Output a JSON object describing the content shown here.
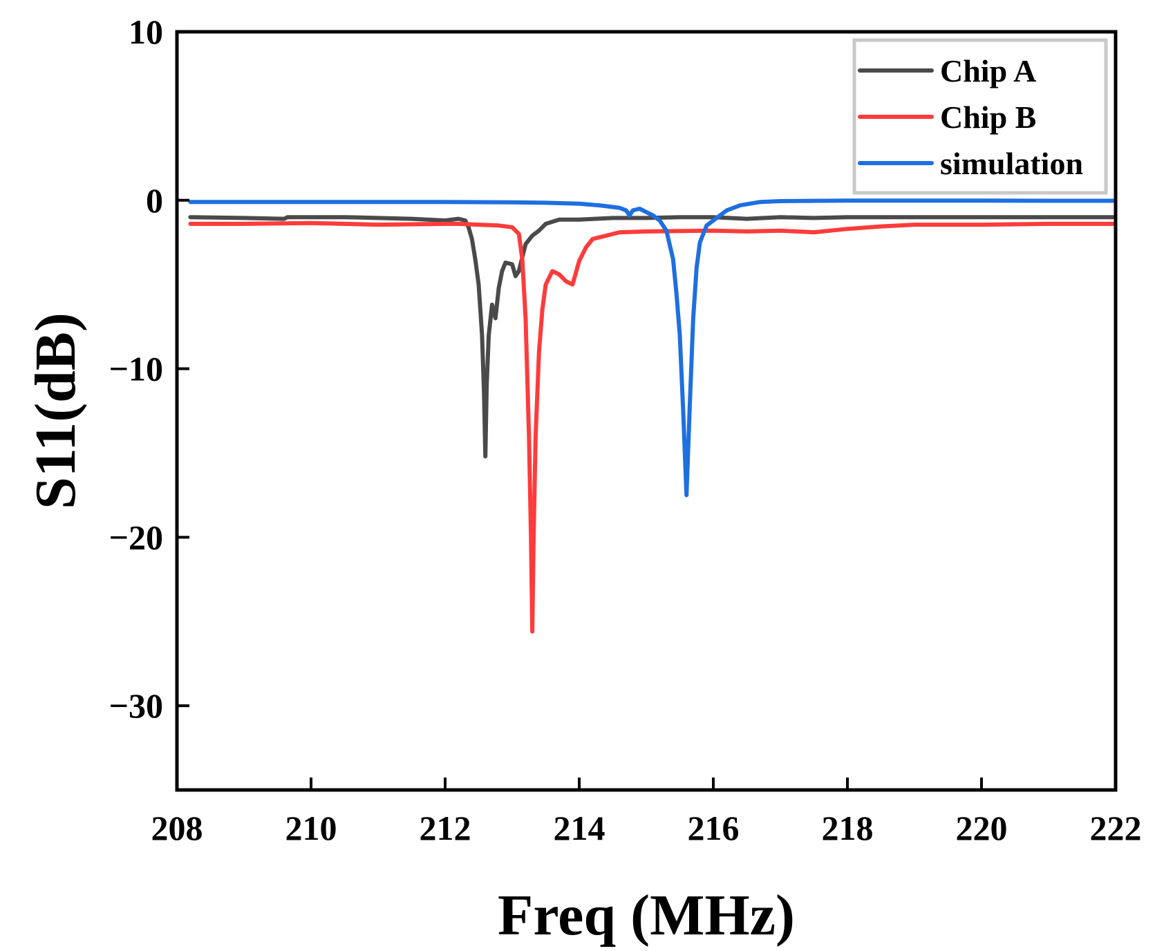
{
  "chart_data": {
    "type": "line",
    "title": "",
    "xlabel": "Freq (MHz)",
    "ylabel": "S11(dB)",
    "xlim": [
      208,
      222
    ],
    "ylim": [
      -35,
      10
    ],
    "xticks": [
      208,
      210,
      212,
      214,
      216,
      218,
      220,
      222
    ],
    "xtick_labels": [
      "208",
      "210",
      "212",
      "214",
      "216",
      "218",
      "220",
      "222"
    ],
    "yticks": [
      10,
      0,
      -10,
      -20,
      -30
    ],
    "ytick_labels": [
      "10",
      "0",
      "−10",
      "−20",
      "−30"
    ],
    "grid": false,
    "legend_position": "top-right",
    "series": [
      {
        "name": "Chip A",
        "color": "#4a4a4a",
        "points": [
          [
            208.2,
            -1.0
          ],
          [
            209.0,
            -1.05
          ],
          [
            209.6,
            -1.1
          ],
          [
            209.65,
            -1.0
          ],
          [
            210.5,
            -1.0
          ],
          [
            211.0,
            -1.05
          ],
          [
            211.5,
            -1.1
          ],
          [
            212.0,
            -1.2
          ],
          [
            212.2,
            -1.1
          ],
          [
            212.3,
            -1.2
          ],
          [
            212.35,
            -1.6
          ],
          [
            212.4,
            -2.3
          ],
          [
            212.45,
            -3.5
          ],
          [
            212.5,
            -5.0
          ],
          [
            212.55,
            -8.0
          ],
          [
            212.58,
            -11.5
          ],
          [
            212.6,
            -15.2
          ],
          [
            212.62,
            -11.0
          ],
          [
            212.65,
            -8.0
          ],
          [
            212.7,
            -6.2
          ],
          [
            212.75,
            -7.0
          ],
          [
            212.8,
            -5.2
          ],
          [
            212.85,
            -4.2
          ],
          [
            212.9,
            -3.7
          ],
          [
            213.0,
            -3.8
          ],
          [
            213.05,
            -4.5
          ],
          [
            213.1,
            -4.2
          ],
          [
            213.2,
            -2.6
          ],
          [
            213.3,
            -2.1
          ],
          [
            213.4,
            -1.8
          ],
          [
            213.5,
            -1.4
          ],
          [
            213.7,
            -1.15
          ],
          [
            214.0,
            -1.15
          ],
          [
            214.5,
            -1.05
          ],
          [
            215.0,
            -1.05
          ],
          [
            215.5,
            -1.0
          ],
          [
            216.0,
            -1.0
          ],
          [
            216.5,
            -1.1
          ],
          [
            217.0,
            -1.0
          ],
          [
            217.5,
            -1.05
          ],
          [
            218.0,
            -1.0
          ],
          [
            219.0,
            -1.0
          ],
          [
            220.0,
            -1.0
          ],
          [
            221.0,
            -1.0
          ],
          [
            222.0,
            -1.0
          ]
        ]
      },
      {
        "name": "Chip B",
        "color": "#ff3b3b",
        "points": [
          [
            208.2,
            -1.4
          ],
          [
            209.0,
            -1.4
          ],
          [
            210.0,
            -1.35
          ],
          [
            211.0,
            -1.45
          ],
          [
            212.0,
            -1.4
          ],
          [
            212.2,
            -1.4
          ],
          [
            212.5,
            -1.45
          ],
          [
            212.8,
            -1.5
          ],
          [
            213.0,
            -1.6
          ],
          [
            213.1,
            -2.0
          ],
          [
            213.15,
            -3.5
          ],
          [
            213.2,
            -7.0
          ],
          [
            213.25,
            -14.0
          ],
          [
            213.28,
            -20.0
          ],
          [
            213.3,
            -25.6
          ],
          [
            213.32,
            -20.0
          ],
          [
            213.35,
            -14.0
          ],
          [
            213.4,
            -9.0
          ],
          [
            213.45,
            -6.5
          ],
          [
            213.5,
            -5.0
          ],
          [
            213.6,
            -4.2
          ],
          [
            213.7,
            -4.4
          ],
          [
            213.8,
            -4.8
          ],
          [
            213.9,
            -5.0
          ],
          [
            214.0,
            -3.6
          ],
          [
            214.1,
            -2.8
          ],
          [
            214.2,
            -2.3
          ],
          [
            214.4,
            -2.1
          ],
          [
            214.6,
            -1.9
          ],
          [
            215.0,
            -1.85
          ],
          [
            216.0,
            -1.8
          ],
          [
            216.5,
            -1.85
          ],
          [
            217.0,
            -1.8
          ],
          [
            217.5,
            -1.9
          ],
          [
            218.0,
            -1.7
          ],
          [
            218.5,
            -1.55
          ],
          [
            219.0,
            -1.45
          ],
          [
            220.0,
            -1.45
          ],
          [
            221.0,
            -1.4
          ],
          [
            222.0,
            -1.4
          ]
        ]
      },
      {
        "name": "simulation",
        "color": "#1e6fe0",
        "points": [
          [
            208.2,
            -0.1
          ],
          [
            209.0,
            -0.1
          ],
          [
            210.0,
            -0.1
          ],
          [
            211.0,
            -0.1
          ],
          [
            212.0,
            -0.1
          ],
          [
            213.0,
            -0.12
          ],
          [
            213.5,
            -0.15
          ],
          [
            214.0,
            -0.2
          ],
          [
            214.3,
            -0.3
          ],
          [
            214.6,
            -0.45
          ],
          [
            214.7,
            -0.6
          ],
          [
            214.75,
            -0.9
          ],
          [
            214.8,
            -0.6
          ],
          [
            214.9,
            -0.5
          ],
          [
            215.0,
            -0.7
          ],
          [
            215.1,
            -0.9
          ],
          [
            215.2,
            -1.2
          ],
          [
            215.3,
            -1.8
          ],
          [
            215.4,
            -3.5
          ],
          [
            215.45,
            -5.5
          ],
          [
            215.5,
            -8.0
          ],
          [
            215.55,
            -12.5
          ],
          [
            215.6,
            -17.5
          ],
          [
            215.65,
            -12.0
          ],
          [
            215.7,
            -7.0
          ],
          [
            215.75,
            -4.0
          ],
          [
            215.8,
            -2.5
          ],
          [
            215.9,
            -1.5
          ],
          [
            216.0,
            -1.2
          ],
          [
            216.1,
            -0.9
          ],
          [
            216.2,
            -0.6
          ],
          [
            216.4,
            -0.3
          ],
          [
            216.7,
            -0.1
          ],
          [
            217.0,
            -0.05
          ],
          [
            218.0,
            -0.02
          ],
          [
            219.0,
            -0.02
          ],
          [
            220.0,
            -0.02
          ],
          [
            221.0,
            -0.03
          ],
          [
            222.0,
            -0.03
          ]
        ]
      }
    ]
  }
}
